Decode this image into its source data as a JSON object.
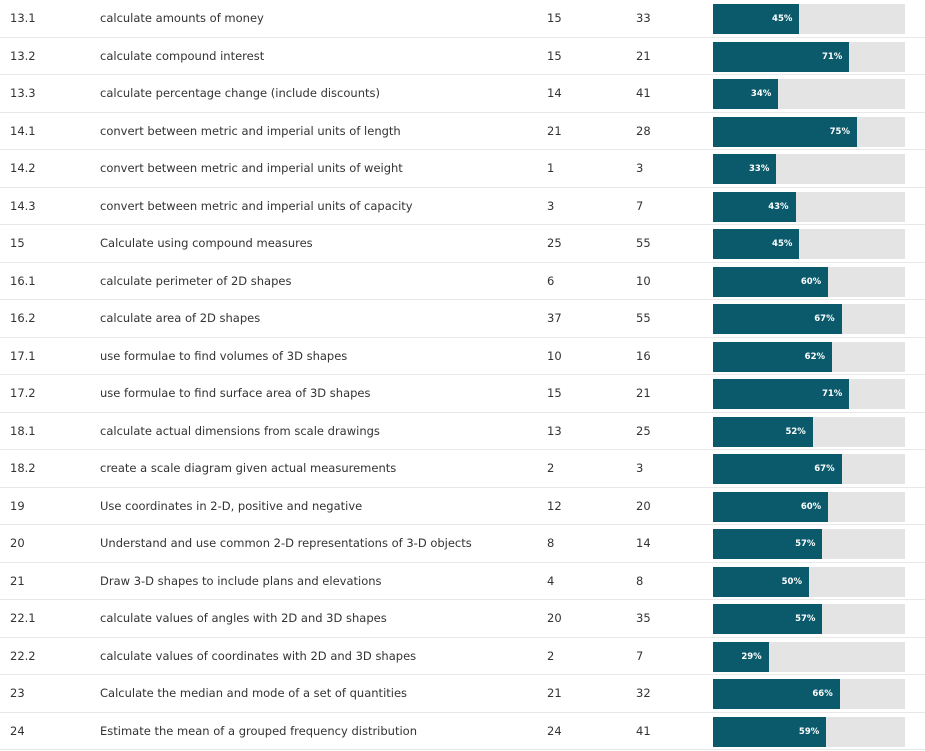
{
  "table": {
    "rows": [
      [
        "13.1",
        "calculate amounts of money",
        15,
        33,
        {
          "value": 45,
          "label": "45%"
        }
      ],
      [
        "13.2",
        "calculate compound interest",
        15,
        21,
        {
          "value": 71,
          "label": "71%"
        }
      ],
      [
        "13.3",
        "calculate percentage change (include discounts)",
        14,
        41,
        {
          "value": 34,
          "label": "34%"
        }
      ],
      [
        "14.1",
        "convert between metric and imperial units of length",
        21,
        28,
        {
          "value": 75,
          "label": "75%"
        }
      ],
      [
        "14.2",
        "convert between metric and imperial units of weight",
        1,
        3,
        {
          "value": 33,
          "label": "33%"
        }
      ],
      [
        "14.3",
        "convert between metric and imperial units of capacity",
        3,
        7,
        {
          "value": 43,
          "label": "43%"
        }
      ],
      [
        "15",
        "Calculate using compound measures",
        25,
        55,
        {
          "value": 45,
          "label": "45%"
        }
      ],
      [
        "16.1",
        "calculate perimeter of 2D shapes",
        6,
        10,
        {
          "value": 60,
          "label": "60%"
        }
      ],
      [
        "16.2",
        "calculate area of 2D shapes",
        37,
        55,
        {
          "value": 67,
          "label": "67%"
        }
      ],
      [
        "17.1",
        "use formulae to find volumes of 3D shapes",
        10,
        16,
        {
          "value": 62,
          "label": "62%"
        }
      ],
      [
        "17.2",
        "use formulae to find surface area of 3D shapes",
        15,
        21,
        {
          "value": 71,
          "label": "71%"
        }
      ],
      [
        "18.1",
        "calculate actual dimensions from scale drawings",
        13,
        25,
        {
          "value": 52,
          "label": "52%"
        }
      ],
      [
        "18.2",
        "create a scale diagram given actual measurements",
        2,
        3,
        {
          "value": 67,
          "label": "67%"
        }
      ],
      [
        "19",
        "Use coordinates in 2-D, positive and negative",
        12,
        20,
        {
          "value": 60,
          "label": "60%"
        }
      ],
      [
        "20",
        "Understand and use common 2-D representations of 3-D objects",
        8,
        14,
        {
          "value": 57,
          "label": "57%"
        }
      ],
      [
        "21",
        "Draw 3-D shapes to include plans and elevations",
        4,
        8,
        {
          "value": 50,
          "label": "50%"
        }
      ],
      [
        "22.1",
        "calculate values of angles with 2D and 3D shapes",
        20,
        35,
        {
          "value": 57,
          "label": "57%"
        }
      ],
      [
        "22.2",
        "calculate values of coordinates with 2D and 3D shapes",
        2,
        7,
        {
          "value": 29,
          "label": "29%"
        }
      ],
      [
        "23",
        "Calculate the median and mode of a set of quantities",
        21,
        32,
        {
          "value": 66,
          "label": "66%"
        }
      ],
      [
        "24",
        "Estimate the mean of a grouped frequency distribution",
        24,
        41,
        {
          "value": 59,
          "label": "59%"
        }
      ]
    ]
  }
}
